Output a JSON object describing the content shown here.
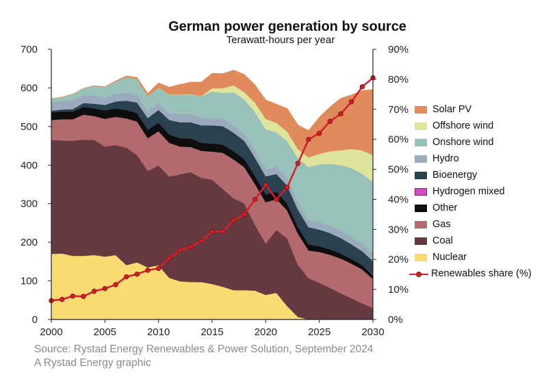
{
  "title": "German power generation by source",
  "subtitle": "Terawatt-hours per year",
  "source_lines": [
    "Source: Rystad Energy Renewables & Power Solution, September 2024",
    "A Rystad Energy graphic"
  ],
  "colors": {
    "Nuclear": "#f9da73",
    "Coal": "#66383f",
    "Gas": "#b26a6e",
    "Other": "#0e0e0e",
    "Hydrogen mixed": "#d24fc2",
    "Bioenergy": "#2a4150",
    "Hydro": "#9caabe",
    "Onshore wind": "#98c1ba",
    "Offshore wind": "#dfe49c",
    "Solar PV": "#e18b5c",
    "Renewables share (%)": "#d4202a"
  },
  "chart_data": {
    "type": "area",
    "stacked": true,
    "title": "German power generation by source",
    "subtitle": "Terawatt-hours per year",
    "x": [
      2000,
      2001,
      2002,
      2003,
      2004,
      2005,
      2006,
      2007,
      2008,
      2009,
      2010,
      2011,
      2012,
      2013,
      2014,
      2015,
      2016,
      2017,
      2018,
      2019,
      2020,
      2021,
      2022,
      2023,
      2024,
      2025,
      2026,
      2027,
      2028,
      2029,
      2030
    ],
    "xlim": [
      2000,
      2030
    ],
    "x_ticks": [
      2000,
      2005,
      2010,
      2015,
      2020,
      2025,
      2030
    ],
    "ylim_left": [
      0,
      700
    ],
    "y_ticks_left": [
      0,
      100,
      200,
      300,
      400,
      500,
      600,
      700
    ],
    "ylim_right": [
      0,
      90
    ],
    "y_ticks_right": [
      "0%",
      "10%",
      "20%",
      "30%",
      "40%",
      "50%",
      "60%",
      "70%",
      "80%",
      "90%"
    ],
    "grid": false,
    "legend_position": "right",
    "series": [
      {
        "name": "Nuclear",
        "values": [
          170,
          171,
          165,
          165,
          167,
          163,
          167,
          141,
          148,
          135,
          141,
          108,
          99,
          97,
          97,
          92,
          85,
          76,
          76,
          75,
          64,
          69,
          35,
          7,
          0,
          0,
          0,
          0,
          0,
          0,
          0
        ]
      },
      {
        "name": "Coal",
        "values": [
          295,
          293,
          298,
          301,
          298,
          285,
          285,
          304,
          278,
          250,
          258,
          262,
          277,
          285,
          270,
          270,
          253,
          238,
          225,
          170,
          133,
          163,
          175,
          135,
          107,
          95,
          82,
          68,
          55,
          42,
          30
        ]
      },
      {
        "name": "Gas",
        "values": [
          52,
          55,
          56,
          65,
          62,
          72,
          73,
          76,
          87,
          85,
          89,
          88,
          72,
          65,
          70,
          73,
          94,
          101,
          94,
          106,
          107,
          80,
          73,
          81,
          72,
          80,
          86,
          90,
          90,
          88,
          75
        ]
      },
      {
        "name": "Other",
        "values": [
          20,
          20,
          20,
          20,
          20,
          22,
          22,
          22,
          22,
          22,
          22,
          22,
          22,
          22,
          21,
          21,
          21,
          21,
          21,
          21,
          20,
          19,
          18,
          17,
          16,
          15,
          14,
          13,
          12,
          11,
          10
        ]
      },
      {
        "name": "Hydrogen mixed",
        "values": [
          0,
          0,
          0,
          0,
          0,
          0,
          0,
          0,
          0,
          0,
          0,
          0,
          0,
          0,
          0,
          0,
          0,
          0,
          0,
          0,
          0,
          0,
          0,
          0,
          0,
          0,
          0,
          0,
          0,
          0,
          2
        ]
      },
      {
        "name": "Bioenergy",
        "values": [
          4,
          5,
          6,
          10,
          12,
          14,
          18,
          24,
          27,
          30,
          33,
          37,
          41,
          42,
          45,
          47,
          48,
          48,
          47,
          47,
          47,
          46,
          46,
          45,
          44,
          43,
          42,
          40,
          38,
          36,
          35
        ]
      },
      {
        "name": "Hydro",
        "values": [
          22,
          22,
          23,
          19,
          21,
          19,
          20,
          21,
          20,
          18,
          20,
          17,
          21,
          22,
          19,
          18,
          20,
          19,
          17,
          19,
          18,
          19,
          17,
          19,
          19,
          19,
          19,
          19,
          19,
          19,
          19
        ]
      },
      {
        "name": "Onshore wind",
        "values": [
          9,
          10,
          16,
          19,
          25,
          27,
          31,
          40,
          41,
          39,
          38,
          48,
          50,
          50,
          56,
          70,
          66,
          86,
          90,
          100,
          104,
          89,
          98,
          115,
          137,
          150,
          160,
          170,
          178,
          182,
          185
        ]
      },
      {
        "name": "Offshore wind",
        "values": [
          0,
          0,
          0,
          0,
          0,
          0,
          0,
          0,
          0,
          0,
          0,
          1,
          1,
          1,
          1,
          8,
          12,
          18,
          19,
          24,
          27,
          24,
          25,
          23,
          25,
          27,
          33,
          38,
          50,
          60,
          70
        ]
      },
      {
        "name": "Solar PV",
        "values": [
          0,
          0,
          0,
          0,
          1,
          1,
          2,
          3,
          4,
          7,
          12,
          19,
          26,
          31,
          36,
          39,
          38,
          39,
          46,
          46,
          49,
          49,
          60,
          62,
          70,
          95,
          115,
          135,
          140,
          155,
          170
        ]
      }
    ],
    "line_series": {
      "name": "Renewables share (%)",
      "axis": "right",
      "values": [
        6.3,
        6.7,
        7.8,
        7.7,
        9.4,
        10.3,
        11.6,
        14.2,
        15.1,
        16.4,
        17.0,
        20.4,
        23.0,
        24.2,
        26.2,
        29.3,
        29.3,
        33.0,
        35.1,
        40.0,
        44.8,
        40.0,
        44.0,
        52.0,
        60.0,
        62.0,
        66.0,
        68.5,
        72.5,
        77.5,
        80.5
      ]
    }
  }
}
